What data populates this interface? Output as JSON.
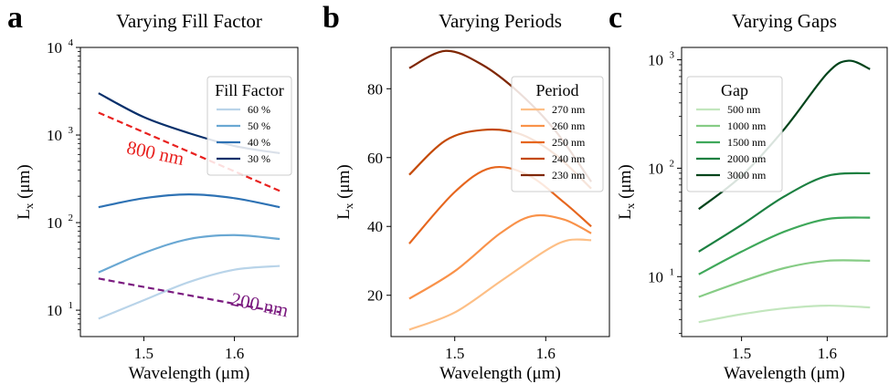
{
  "chart_data": [
    {
      "panel_letter": "a",
      "type": "line",
      "title": "Varying Fill Factor",
      "xlabel": "Wavelength (μm)",
      "ylabel": "L",
      "ylabel_sub": "x",
      "ylabel_unit": " (μm)",
      "yscale": "log",
      "xlim": [
        1.43,
        1.67
      ],
      "ylim": [
        5,
        10000
      ],
      "xticks": [
        {
          "v": 1.5,
          "label": "1.5"
        },
        {
          "v": 1.6,
          "label": "1.6"
        }
      ],
      "yticks": [
        {
          "v": 10,
          "base": "10",
          "exp": "1"
        },
        {
          "v": 100,
          "base": "10",
          "exp": "2"
        },
        {
          "v": 1000,
          "base": "10",
          "exp": "3"
        },
        {
          "v": 10000,
          "base": "10",
          "exp": "4"
        }
      ],
      "legend": {
        "title": "Fill Factor",
        "placement": "top-right"
      },
      "series": [
        {
          "name": "60 %",
          "color": "#b9d4e9",
          "x": [
            1.45,
            1.5,
            1.55,
            1.6,
            1.65
          ],
          "y": [
            8,
            13,
            21,
            29,
            32
          ]
        },
        {
          "name": "50 %",
          "color": "#6aa8d3",
          "x": [
            1.45,
            1.5,
            1.55,
            1.6,
            1.65
          ],
          "y": [
            27,
            45,
            65,
            72,
            65
          ]
        },
        {
          "name": "40 %",
          "color": "#2e72b4",
          "x": [
            1.45,
            1.5,
            1.55,
            1.6,
            1.65
          ],
          "y": [
            150,
            190,
            210,
            190,
            150
          ]
        },
        {
          "name": "30 %",
          "color": "#08306b",
          "x": [
            1.45,
            1.5,
            1.55,
            1.6,
            1.65
          ],
          "y": [
            3000,
            1600,
            1050,
            750,
            620
          ]
        }
      ],
      "dashed": [
        {
          "label": "800 nm",
          "color": "#e8211f",
          "x": [
            1.45,
            1.65
          ],
          "y": [
            1800,
            230
          ],
          "label_at": [
            1.48,
            620
          ],
          "rotate": 12
        },
        {
          "label": "200 nm",
          "color": "#7a1a7f",
          "x": [
            1.45,
            1.65
          ],
          "y": [
            23,
            9.5
          ],
          "label_at": [
            1.595,
            11.5
          ],
          "rotate": 12
        }
      ]
    },
    {
      "panel_letter": "b",
      "type": "line",
      "title": "Varying Periods",
      "xlabel": "Wavelength (μm)",
      "ylabel": "L",
      "ylabel_sub": "x",
      "ylabel_unit": " (μm)",
      "yscale": "linear",
      "xlim": [
        1.43,
        1.67
      ],
      "ylim": [
        8,
        92
      ],
      "xticks": [
        {
          "v": 1.5,
          "label": "1.5"
        },
        {
          "v": 1.6,
          "label": "1.6"
        }
      ],
      "yticks": [
        {
          "v": 20,
          "label": "20"
        },
        {
          "v": 40,
          "label": "40"
        },
        {
          "v": 60,
          "label": "60"
        },
        {
          "v": 80,
          "label": "80"
        }
      ],
      "legend": {
        "title": "Period",
        "placement": "top-right"
      },
      "series": [
        {
          "name": "270 nm",
          "color": "#fdbf86",
          "x": [
            1.45,
            1.5,
            1.55,
            1.6,
            1.625,
            1.65
          ],
          "y": [
            10,
            15,
            24,
            33,
            36,
            36
          ]
        },
        {
          "name": "260 nm",
          "color": "#f9924a",
          "x": [
            1.45,
            1.5,
            1.55,
            1.585,
            1.62,
            1.65
          ],
          "y": [
            19,
            27,
            38,
            43,
            42,
            38
          ]
        },
        {
          "name": "250 nm",
          "color": "#e6661e",
          "x": [
            1.45,
            1.5,
            1.54,
            1.58,
            1.62,
            1.65
          ],
          "y": [
            35,
            50,
            57,
            55,
            47,
            40
          ]
        },
        {
          "name": "240 nm",
          "color": "#c44a08",
          "x": [
            1.45,
            1.49,
            1.53,
            1.57,
            1.61,
            1.65
          ],
          "y": [
            55,
            65,
            68,
            67,
            61,
            51
          ]
        },
        {
          "name": "230 nm",
          "color": "#7f2704",
          "x": [
            1.45,
            1.49,
            1.53,
            1.57,
            1.61,
            1.65
          ],
          "y": [
            86,
            91,
            87,
            79,
            68,
            53
          ]
        }
      ]
    },
    {
      "panel_letter": "c",
      "type": "line",
      "title": "Varying Gaps",
      "xlabel": "Wavelength (μm)",
      "ylabel": "L",
      "ylabel_sub": "x",
      "ylabel_unit": " (μm)",
      "yscale": "log",
      "xlim": [
        1.43,
        1.67
      ],
      "ylim": [
        2.8,
        1300
      ],
      "xticks": [
        {
          "v": 1.5,
          "label": "1.5"
        },
        {
          "v": 1.6,
          "label": "1.6"
        }
      ],
      "yticks": [
        {
          "v": 10,
          "base": "10",
          "exp": "1"
        },
        {
          "v": 100,
          "base": "10",
          "exp": "2"
        },
        {
          "v": 1000,
          "base": "10",
          "exp": "3"
        }
      ],
      "legend": {
        "title": "Gap",
        "placement": "top-left"
      },
      "series": [
        {
          "name": "500 nm",
          "color": "#c2e6bd",
          "x": [
            1.45,
            1.5,
            1.55,
            1.6,
            1.65
          ],
          "y": [
            3.8,
            4.5,
            5.1,
            5.4,
            5.2
          ]
        },
        {
          "name": "1000 nm",
          "color": "#86cc85",
          "x": [
            1.45,
            1.5,
            1.55,
            1.6,
            1.65
          ],
          "y": [
            6.5,
            9,
            12,
            14,
            14
          ]
        },
        {
          "name": "1500 nm",
          "color": "#3fa85a",
          "x": [
            1.45,
            1.5,
            1.55,
            1.6,
            1.65
          ],
          "y": [
            10.5,
            17,
            26,
            34,
            35
          ]
        },
        {
          "name": "2000 nm",
          "color": "#1c8041",
          "x": [
            1.45,
            1.5,
            1.55,
            1.6,
            1.65
          ],
          "y": [
            17,
            30,
            55,
            85,
            90
          ]
        },
        {
          "name": "3000 nm",
          "color": "#00441b",
          "x": [
            1.45,
            1.5,
            1.55,
            1.6,
            1.625,
            1.65
          ],
          "y": [
            42,
            85,
            230,
            750,
            980,
            820
          ]
        }
      ]
    }
  ]
}
